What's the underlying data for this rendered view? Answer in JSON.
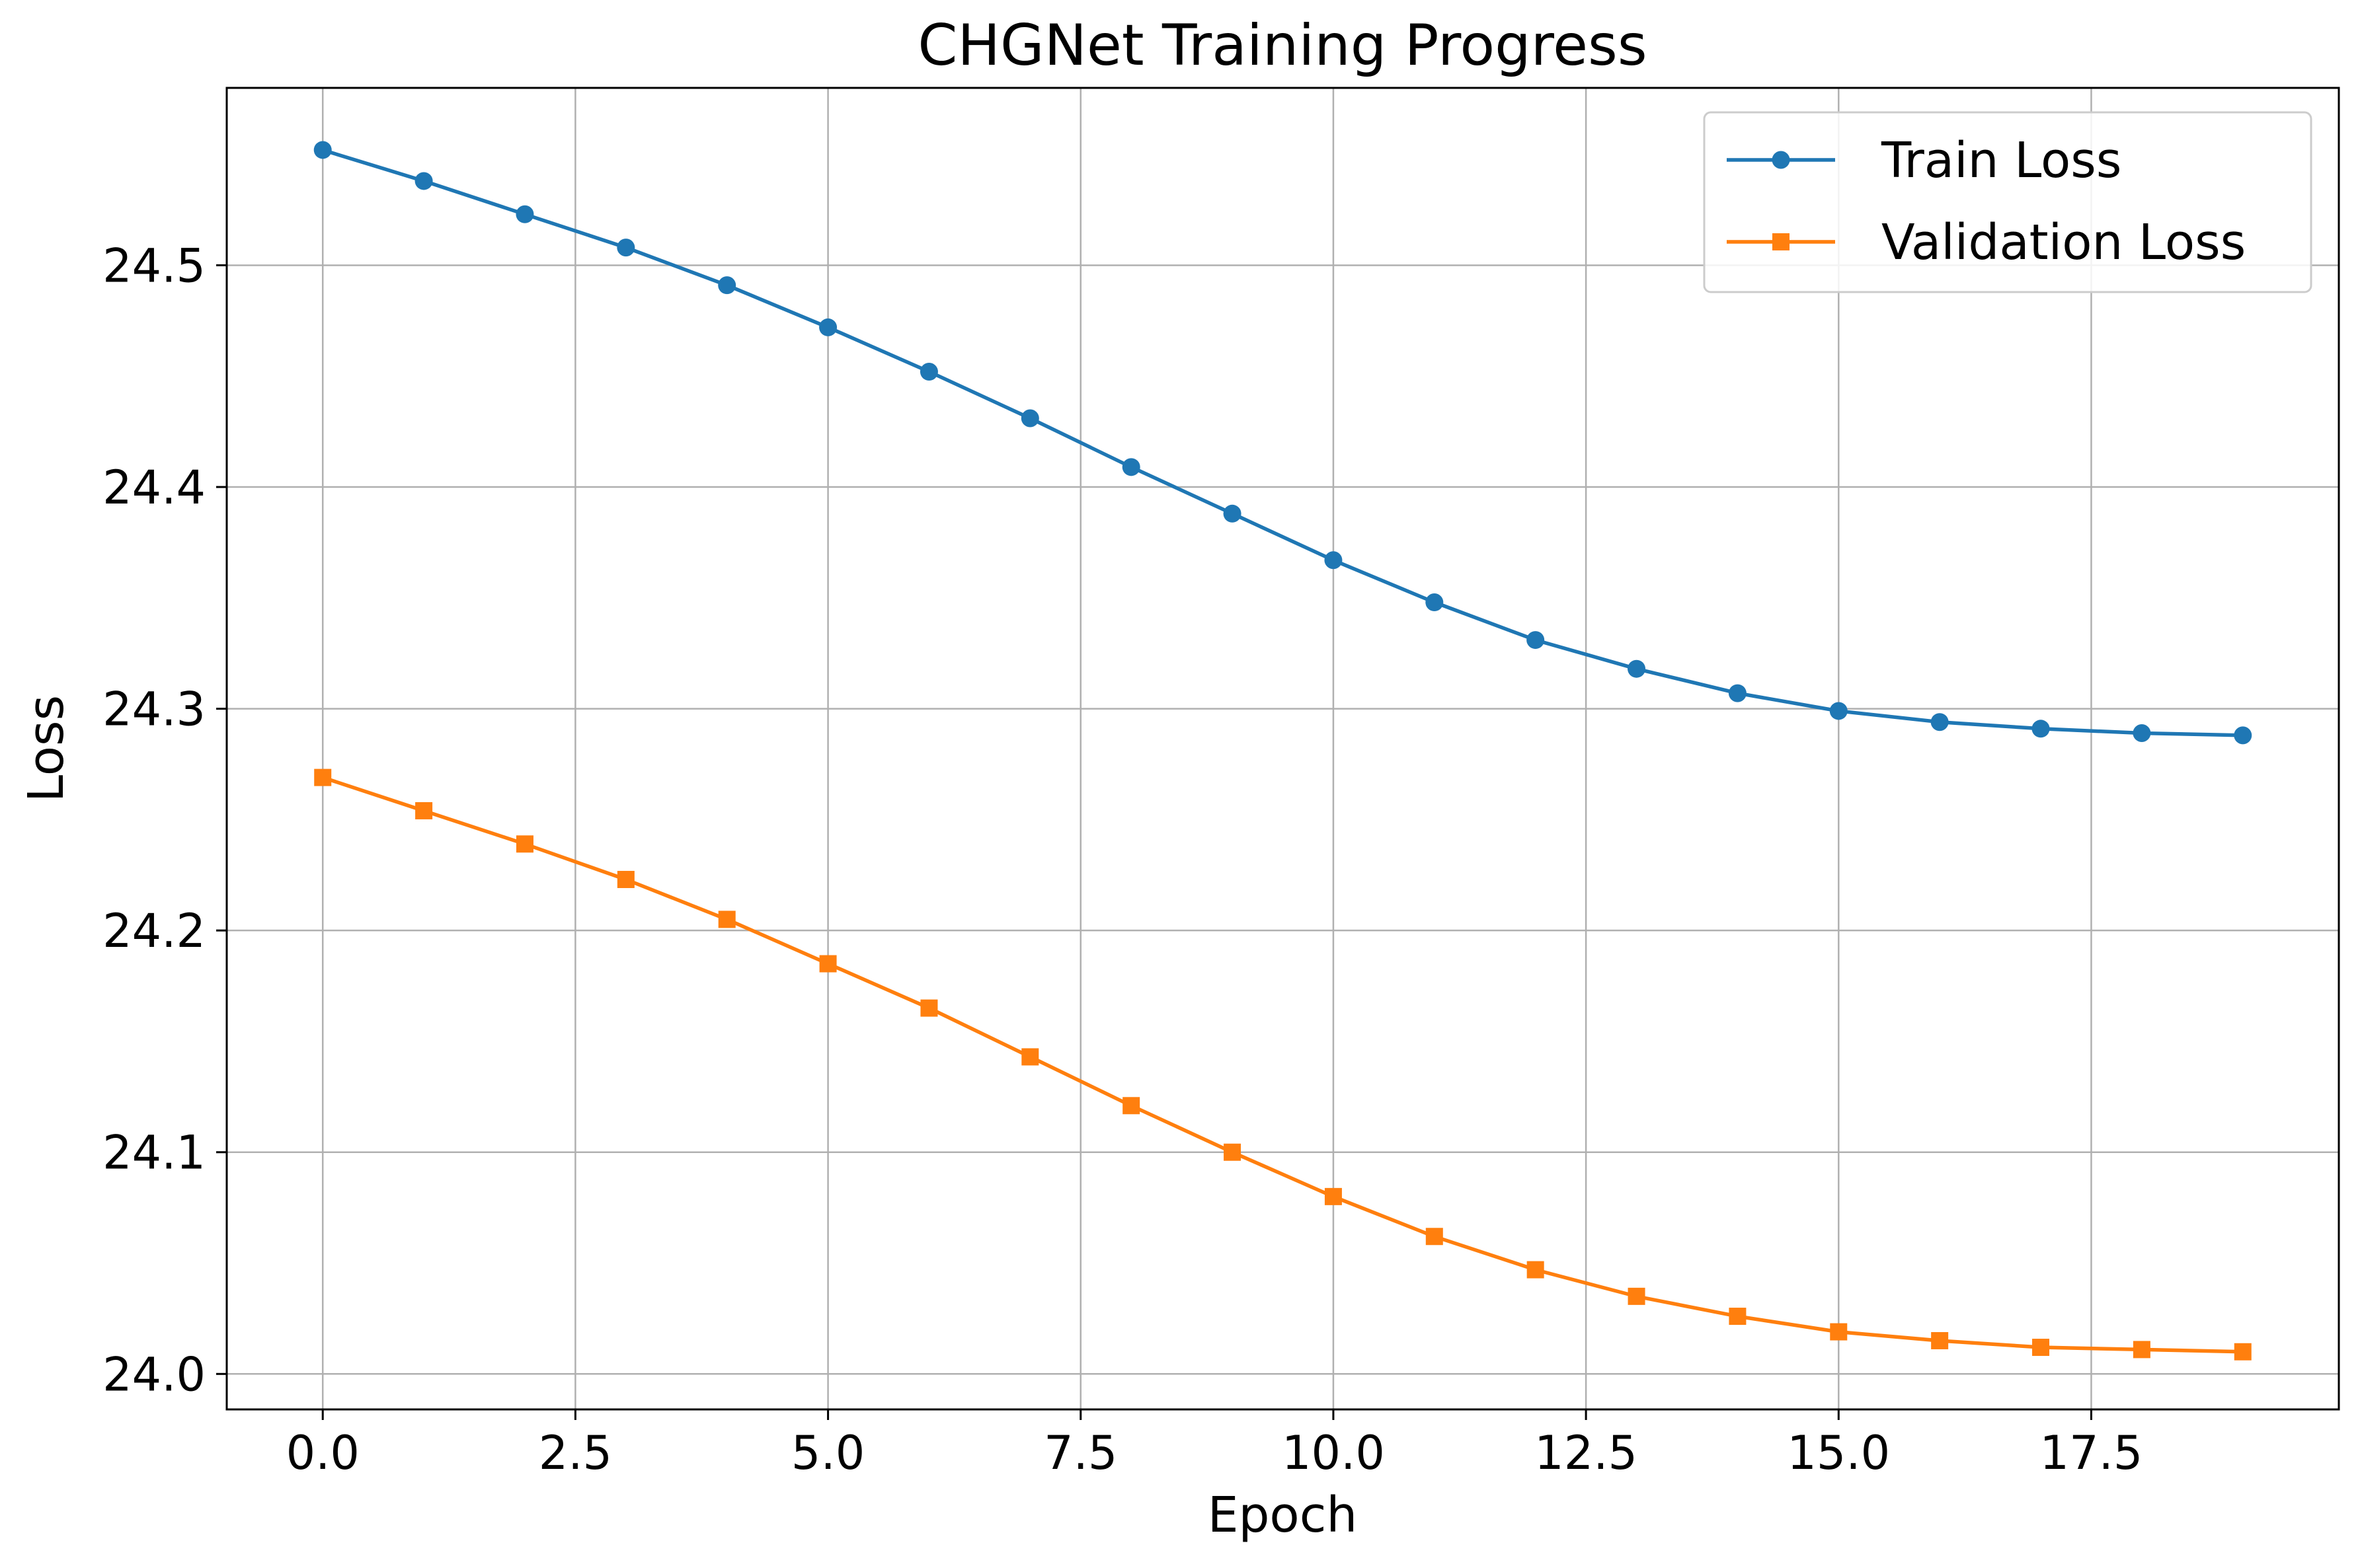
{
  "chart_data": {
    "type": "line",
    "title": "CHGNet Training Progress",
    "xlabel": "Epoch",
    "ylabel": "Loss",
    "xlim": [
      -0.95,
      19.95
    ],
    "ylim": [
      23.984,
      24.58
    ],
    "x_ticks": [
      0.0,
      2.5,
      5.0,
      7.5,
      10.0,
      12.5,
      15.0,
      17.5
    ],
    "x_tick_labels": [
      "0.0",
      "2.5",
      "5.0",
      "7.5",
      "10.0",
      "12.5",
      "15.0",
      "17.5"
    ],
    "y_ticks": [
      24.0,
      24.1,
      24.2,
      24.3,
      24.4,
      24.5
    ],
    "y_tick_labels": [
      "24.0",
      "24.1",
      "24.2",
      "24.3",
      "24.4",
      "24.5"
    ],
    "grid": true,
    "legend_position": "top-right",
    "x": [
      0,
      1,
      2,
      3,
      4,
      5,
      6,
      7,
      8,
      9,
      10,
      11,
      12,
      13,
      14,
      15,
      16,
      17,
      18,
      19
    ],
    "series": [
      {
        "name": "Train Loss",
        "color": "#1f77b4",
        "marker": "circle",
        "values": [
          24.552,
          24.538,
          24.523,
          24.508,
          24.491,
          24.472,
          24.452,
          24.431,
          24.409,
          24.388,
          24.367,
          24.348,
          24.331,
          24.318,
          24.307,
          24.299,
          24.294,
          24.291,
          24.289,
          24.288
        ]
      },
      {
        "name": "Validation Loss",
        "color": "#ff7f0e",
        "marker": "square",
        "values": [
          24.269,
          24.254,
          24.239,
          24.223,
          24.205,
          24.185,
          24.165,
          24.143,
          24.121,
          24.1,
          24.08,
          24.062,
          24.047,
          24.035,
          24.026,
          24.019,
          24.015,
          24.012,
          24.011,
          24.01
        ]
      }
    ]
  }
}
